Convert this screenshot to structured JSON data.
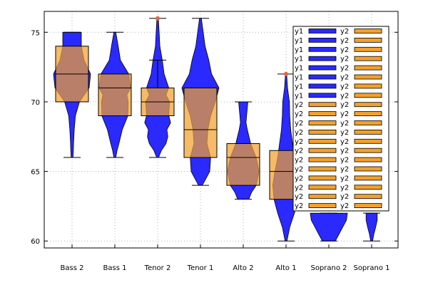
{
  "chart_data": {
    "type": "violin",
    "title": "",
    "xlabel": "",
    "ylabel": "",
    "categories": [
      "Bass 2",
      "Bass 1",
      "Tenor 2",
      "Tenor 1",
      "Alto 2",
      "Alto 1",
      "Soprano 2",
      "Soprano 1"
    ],
    "ylim": [
      59.5,
      76.5
    ],
    "yticks": [
      60,
      65,
      70,
      75
    ],
    "grid": true,
    "legend_position": "top-right",
    "colors": {
      "violin": "#2a2aff",
      "box": "#f2a12e",
      "box_overlap": "#c07d48",
      "outlier": "#e8603c",
      "grid": "#b0b0b0"
    },
    "series": [
      {
        "name": "y1",
        "kind": "violin"
      },
      {
        "name": "y2",
        "kind": "box"
      }
    ],
    "violins": [
      {
        "category": "Bass 2",
        "min": 66,
        "max": 75,
        "profile": [
          [
            66,
            0.05
          ],
          [
            66.5,
            0.07
          ],
          [
            67,
            0.08
          ],
          [
            68,
            0.12
          ],
          [
            69,
            0.18
          ],
          [
            70,
            0.4
          ],
          [
            71,
            0.92
          ],
          [
            72,
            1.0
          ],
          [
            73,
            0.65
          ],
          [
            74,
            0.5
          ],
          [
            75,
            0.5
          ]
        ]
      },
      {
        "category": "Bass 1",
        "min": 66,
        "max": 75,
        "profile": [
          [
            66,
            0.05
          ],
          [
            66.5,
            0.12
          ],
          [
            67,
            0.22
          ],
          [
            68,
            0.4
          ],
          [
            69,
            0.7
          ],
          [
            70,
            0.72
          ],
          [
            70.5,
            0.65
          ],
          [
            71,
            0.85
          ],
          [
            72,
            0.75
          ],
          [
            73,
            0.3
          ],
          [
            74,
            0.18
          ],
          [
            75,
            0.05
          ]
        ]
      },
      {
        "category": "Tenor 2",
        "min": 66,
        "max": 76,
        "profile": [
          [
            66,
            0.05
          ],
          [
            66.5,
            0.2
          ],
          [
            67,
            0.45
          ],
          [
            67.5,
            0.55
          ],
          [
            68,
            0.5
          ],
          [
            68.5,
            0.7
          ],
          [
            69,
            0.6
          ],
          [
            69.5,
            0.62
          ],
          [
            70,
            0.65
          ],
          [
            70.5,
            0.45
          ],
          [
            71,
            0.6
          ],
          [
            72,
            0.35
          ],
          [
            73,
            0.25
          ],
          [
            74,
            0.12
          ],
          [
            75,
            0.08
          ],
          [
            76,
            0.04
          ]
        ]
      },
      {
        "category": "Tenor 1",
        "min": 64,
        "max": 76,
        "profile": [
          [
            64,
            0.1
          ],
          [
            64.5,
            0.3
          ],
          [
            65,
            0.5
          ],
          [
            66,
            0.55
          ],
          [
            67,
            0.35
          ],
          [
            68,
            0.4
          ],
          [
            69,
            0.55
          ],
          [
            70,
            0.8
          ],
          [
            71,
            1.0
          ],
          [
            72,
            0.6
          ],
          [
            73,
            0.45
          ],
          [
            74,
            0.25
          ],
          [
            75,
            0.15
          ],
          [
            76,
            0.05
          ]
        ]
      },
      {
        "category": "Alto 2",
        "min": 63,
        "max": 70,
        "profile": [
          [
            63,
            0.3
          ],
          [
            63.5,
            0.45
          ],
          [
            64,
            0.7
          ],
          [
            65,
            0.85
          ],
          [
            66,
            0.7
          ],
          [
            67,
            0.4
          ],
          [
            68,
            0.22
          ],
          [
            68.5,
            0.15
          ],
          [
            69,
            0.18
          ],
          [
            70,
            0.25
          ]
        ]
      },
      {
        "category": "Alto 1",
        "min": 60,
        "max": 72,
        "profile": [
          [
            60,
            0.05
          ],
          [
            61,
            0.2
          ],
          [
            62,
            0.45
          ],
          [
            63,
            0.65
          ],
          [
            64,
            0.72
          ],
          [
            65,
            0.6
          ],
          [
            66,
            0.45
          ],
          [
            67,
            0.35
          ],
          [
            68,
            0.25
          ],
          [
            69,
            0.2
          ],
          [
            70,
            0.18
          ],
          [
            71,
            0.08
          ],
          [
            72,
            0.03
          ]
        ]
      },
      {
        "category": "Soprano 2",
        "min": 60,
        "max": 62,
        "profile": [
          [
            60,
            0.35
          ],
          [
            60.5,
            0.55
          ],
          [
            61,
            0.75
          ],
          [
            61.5,
            0.95
          ],
          [
            62,
            1.0
          ]
        ]
      },
      {
        "category": "Soprano 1",
        "min": 60,
        "max": 62,
        "profile": [
          [
            60,
            0.05
          ],
          [
            60.5,
            0.12
          ],
          [
            61,
            0.22
          ],
          [
            61.5,
            0.3
          ],
          [
            62,
            0.3
          ]
        ]
      }
    ],
    "boxes": [
      {
        "category": "Bass 2",
        "q1": 70,
        "median": 72,
        "q3": 74
      },
      {
        "category": "Bass 1",
        "q1": 69,
        "median": 71,
        "q3": 72
      },
      {
        "category": "Tenor 2",
        "q1": 69,
        "median": 70,
        "q3": 71,
        "whisker_high": 73
      },
      {
        "category": "Tenor 1",
        "q1": 66,
        "median": 68,
        "q3": 71
      },
      {
        "category": "Alto 2",
        "q1": 64,
        "median": 66,
        "q3": 67
      },
      {
        "category": "Alto 1",
        "q1": 63,
        "median": 65,
        "q3": 66.5
      },
      {
        "category": "Soprano 2",
        "q1": 62.2,
        "median": null,
        "q3": 62.5
      },
      {
        "category": "Soprano 1",
        "q1": null,
        "median": null,
        "q3": null
      }
    ],
    "outliers": [
      {
        "category": "Tenor 2",
        "y": 76
      },
      {
        "category": "Alto 1",
        "y": 72
      }
    ],
    "legend": {
      "entries": [
        "y1",
        "y1",
        "y1",
        "y1",
        "y1",
        "y1",
        "y1",
        "y1",
        "y2",
        "y2",
        "y2",
        "y2",
        "y2",
        "y2",
        "y2",
        "y2",
        "y2",
        "y2",
        "y2",
        "y2",
        "y2",
        "y2",
        "y2",
        "y2",
        "y2",
        "y2",
        "y2",
        "y2",
        "y2",
        "y2",
        "y2",
        "y2",
        "y2",
        "y2",
        "y2",
        "y2",
        "y2",
        "y2",
        "y2",
        "y2"
      ]
    }
  }
}
